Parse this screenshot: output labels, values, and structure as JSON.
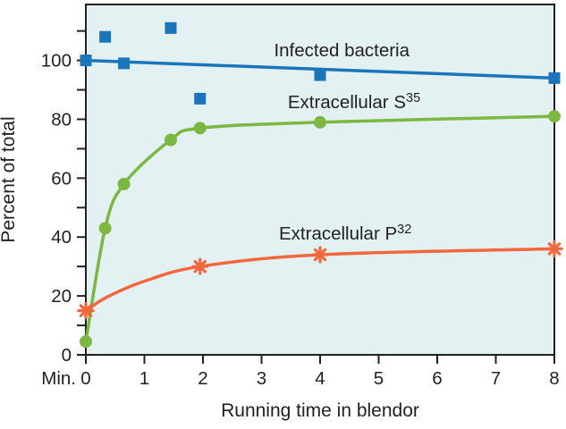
{
  "chart_data": {
    "type": "line",
    "title": "",
    "xlabel": "Running time in blendor",
    "ylabel": "Percent of total",
    "x_unit_label": "Min.",
    "xlim": [
      0,
      8
    ],
    "ylim": [
      0,
      119
    ],
    "x_ticks": [
      0,
      1,
      2,
      3,
      4,
      5,
      6,
      7,
      8
    ],
    "y_ticks": [
      0,
      10,
      20,
      30,
      40,
      50,
      60,
      70,
      80,
      90,
      100,
      110
    ],
    "y_tick_labels_shown": [
      0,
      20,
      40,
      60,
      80,
      100
    ],
    "grid": false,
    "legend_position": "inline-annotations",
    "plot_bg_color": "#e3f1f2",
    "axis_color": "#231f20",
    "series": [
      {
        "name": "Infected bacteria",
        "label": {
          "text": "Infected bacteria",
          "sup": "",
          "x": 4.37,
          "y": 101.4
        },
        "color": "#1b75bb",
        "marker": "square",
        "points": [
          [
            0,
            100
          ],
          [
            0.33,
            108
          ],
          [
            0.65,
            99
          ],
          [
            1.45,
            111
          ],
          [
            1.95,
            87
          ],
          [
            4,
            95
          ],
          [
            8,
            94
          ]
        ],
        "curve": [
          [
            0,
            100
          ],
          [
            8,
            94
          ]
        ],
        "curve_type": "straight"
      },
      {
        "name": "Extracellular S35",
        "label": {
          "text": "Extracellular S",
          "sup": "35",
          "x": 4.58,
          "y": 83.8
        },
        "color": "#7cb742",
        "marker": "circle",
        "points": [
          [
            0,
            4.5
          ],
          [
            0.33,
            43
          ],
          [
            0.65,
            58
          ],
          [
            1.45,
            73
          ],
          [
            1.95,
            77
          ],
          [
            4,
            79
          ],
          [
            8,
            81
          ]
        ],
        "curve": [
          [
            0,
            4.5
          ],
          [
            0.33,
            43
          ],
          [
            0.65,
            58
          ],
          [
            1.45,
            73
          ],
          [
            1.95,
            77
          ],
          [
            4,
            79
          ],
          [
            8,
            81
          ]
        ],
        "curve_type": "smooth"
      },
      {
        "name": "Extracellular P32",
        "label": {
          "text": "Extracellular P",
          "sup": "32",
          "x": 4.43,
          "y": 39.2
        },
        "color": "#f2673c",
        "marker": "asterisk",
        "points": [
          [
            0,
            15
          ],
          [
            1.95,
            30
          ],
          [
            4,
            34
          ],
          [
            8,
            36
          ]
        ],
        "curve": [
          [
            0,
            15
          ],
          [
            0.35,
            19.5
          ],
          [
            1,
            25
          ],
          [
            1.95,
            30
          ],
          [
            4,
            34
          ],
          [
            8,
            36
          ]
        ],
        "curve_type": "smooth"
      }
    ]
  }
}
